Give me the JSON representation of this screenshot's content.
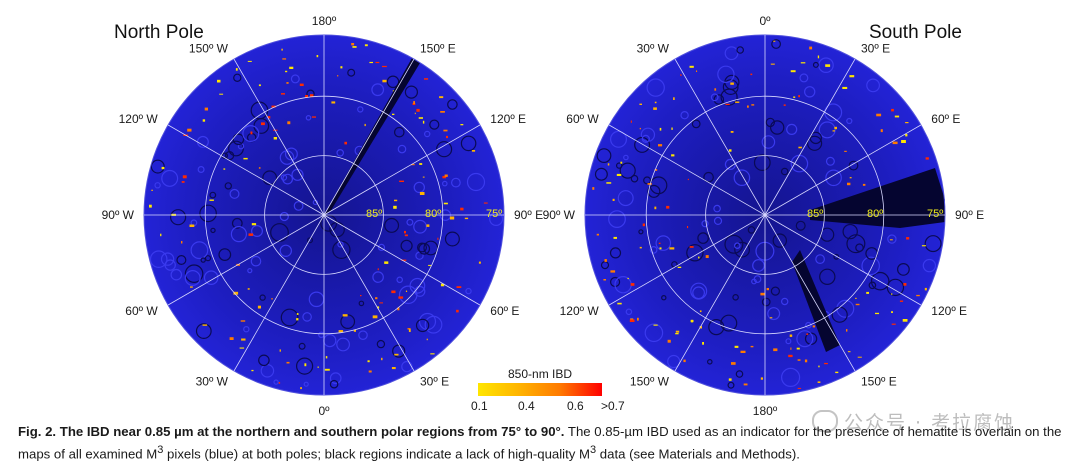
{
  "figure": {
    "north": {
      "title": "North Pole",
      "angle_labels": [
        {
          "angle": 0,
          "text": "180º"
        },
        {
          "angle": 30,
          "text": "150º E"
        },
        {
          "angle": 60,
          "text": "120º E"
        },
        {
          "angle": 90,
          "text": "90º E"
        },
        {
          "angle": 120,
          "text": "60º E"
        },
        {
          "angle": 150,
          "text": "30º E"
        },
        {
          "angle": 180,
          "text": "0º"
        },
        {
          "angle": 210,
          "text": "30º W"
        },
        {
          "angle": 240,
          "text": "60º W"
        },
        {
          "angle": 270,
          "text": "90º W"
        },
        {
          "angle": 300,
          "text": "120º W"
        },
        {
          "angle": 330,
          "text": "150º W"
        }
      ],
      "ring_labels": [
        "85º",
        "80º",
        "75º"
      ]
    },
    "south": {
      "title": "South Pole",
      "angle_labels": [
        {
          "angle": 0,
          "text": "0º"
        },
        {
          "angle": 30,
          "text": "30º E"
        },
        {
          "angle": 60,
          "text": "60º E"
        },
        {
          "angle": 90,
          "text": "90º E"
        },
        {
          "angle": 120,
          "text": "120º E"
        },
        {
          "angle": 150,
          "text": "150º E"
        },
        {
          "angle": 180,
          "text": "180º"
        },
        {
          "angle": 210,
          "text": "150º W"
        },
        {
          "angle": 240,
          "text": "120º W"
        },
        {
          "angle": 270,
          "text": "90º W"
        },
        {
          "angle": 300,
          "text": "60º W"
        },
        {
          "angle": 330,
          "text": "30º W"
        }
      ],
      "ring_labels": [
        "85º",
        "80º",
        "75º"
      ]
    },
    "colorbar": {
      "title": "850-nm IBD",
      "ticks": [
        "0.1",
        "0.4",
        "0.6",
        ">0.7"
      ],
      "colors": [
        "#ffe600",
        "#ffb400",
        "#ff7a00",
        "#f23d00",
        "#ff0000"
      ]
    },
    "colors": {
      "map_base": "#1f1fc8",
      "map_dark": "#050530",
      "grid": "#d8d8ff",
      "ring_label": "#f2ee1c"
    }
  },
  "caption": {
    "bold": "Fig. 2. The IBD near 0.85 µm at the northern and southern polar regions from 75° to 90°.",
    "text_1": " The 0.85-µm IBD used as an indicator for the presence of hematite is overlain on the maps of all examined M",
    "sup_1": "3",
    "text_2": " pixels (blue) at both poles; black regions indicate a lack of high-quality M",
    "sup_2": "3",
    "text_3": " data (see Materials and Methods)."
  },
  "watermark": {
    "icon": "wechat-icon",
    "text": "公众号 · 考拉腐蚀"
  }
}
